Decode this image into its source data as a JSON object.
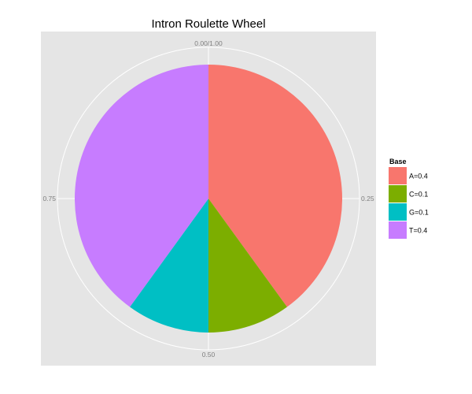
{
  "chart_data": {
    "type": "pie",
    "title": "Intron Roulette Wheel",
    "categories": [
      "A=0.4",
      "C=0.1",
      "G=0.1",
      "T=0.4"
    ],
    "values": [
      0.4,
      0.1,
      0.1,
      0.4
    ],
    "colors": [
      "#F8766D",
      "#7CAE00",
      "#00BFC4",
      "#C77CFF"
    ],
    "angular_ticks": [
      {
        "value": 0.0,
        "label": "0.00/1.00"
      },
      {
        "value": 0.25,
        "label": "0.25"
      },
      {
        "value": 0.5,
        "label": "0.50"
      },
      {
        "value": 0.75,
        "label": "0.75"
      }
    ],
    "legend": {
      "title": "Base",
      "position": "right"
    },
    "grid": true,
    "panel_background": "#E5E5E5",
    "grid_color": "#FFFFFF"
  }
}
